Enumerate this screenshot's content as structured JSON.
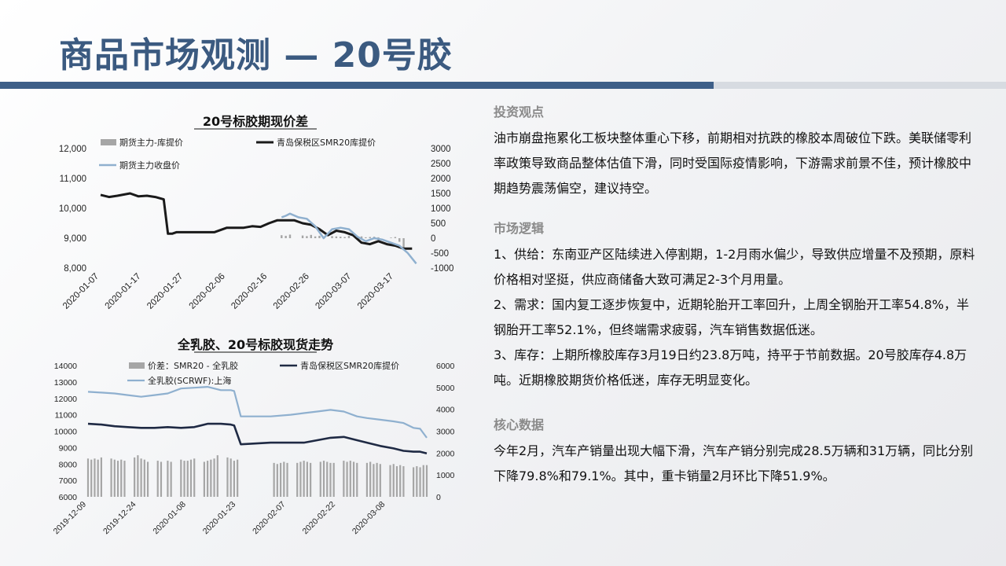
{
  "header": {
    "title": "商品市场观测 — 20号胶"
  },
  "colors": {
    "accent": "#3e5f88",
    "bar_gray": "#a6a6a6",
    "line_dark": "#1a1a1a",
    "line_navy": "#1f2a44",
    "line_light": "#8fb0cf"
  },
  "right_panel": {
    "sections": [
      {
        "heading": "投资观点",
        "paragraphs": [
          "油市崩盘拖累化工板块整体重心下移，前期相对抗跌的橡胶本周破位下跌。美联储零利率政策导致商品整体估值下滑，同时受国际疫情影响，下游需求前景不佳，预计橡胶中期趋势震荡偏空，建议持空。"
        ]
      },
      {
        "heading": "市场逻辑",
        "paragraphs": [
          "1、供给：东南亚产区陆续进入停割期，1-2月雨水偏少，导致供应增量不及预期，原料价格相对坚挺，供应商储备大致可满足2-3个月用量。",
          "2、需求：国内复工逐步恢复中，近期轮胎开工率回升，上周全钢胎开工率54.8%，半钢胎开工率52.1%，但终端需求疲弱，汽车销售数据低迷。",
          "3、库存：上期所橡胶库存3月19日约23.8万吨，持平于节前数据。20号胶库存4.8万吨。近期橡胶期货价格低迷，库存无明显变化。"
        ]
      },
      {
        "heading": "核心数据",
        "paragraphs": [
          "今年2月，汽车产销量出现大幅下滑，汽车产销分别完成28.5万辆和31万辆，同比分别下降79.8%和79.1%。其中，重卡销量2月环比下降51.9%。"
        ]
      }
    ]
  },
  "chart_data": [
    {
      "type": "line",
      "title": "20号标胶期现价差",
      "left_axis": {
        "ylim": [
          8000,
          12000
        ],
        "ticks": [
          "12,000",
          "11,000",
          "10,000",
          "9,000",
          "8,000"
        ],
        "tick_values": [
          12000,
          11000,
          10000,
          9000,
          8000
        ]
      },
      "right_axis": {
        "ylim": [
          -1000,
          3000
        ],
        "ticks": [
          "3000",
          "2500",
          "2000",
          "1500",
          "1000",
          "500",
          "0",
          "-500",
          "-1000"
        ],
        "tick_values": [
          3000,
          2500,
          2000,
          1500,
          1000,
          500,
          0,
          -500,
          -1000
        ]
      },
      "x_range": [
        "2020-01-07",
        "2020-03-23"
      ],
      "x_ticks": [
        "2020-01-07",
        "2020-01-17",
        "2020-01-27",
        "2020-02-06",
        "2020-02-16",
        "2020-02-26",
        "2020-03-07",
        "2020-03-17"
      ],
      "legend_position": "top",
      "series": [
        {
          "name": "期货主力-库提价",
          "type": "bar",
          "axis": "right",
          "x": [
            "2020-02-19",
            "2020-02-20",
            "2020-02-21",
            "2020-02-24",
            "2020-02-25",
            "2020-02-26",
            "2020-02-27",
            "2020-02-28",
            "2020-03-02",
            "2020-03-03",
            "2020-03-04",
            "2020-03-05",
            "2020-03-06",
            "2020-03-09",
            "2020-03-10",
            "2020-03-11",
            "2020-03-12",
            "2020-03-13",
            "2020-03-16",
            "2020-03-17",
            "2020-03-18",
            "2020-03-19"
          ],
          "values": [
            100,
            80,
            120,
            90,
            70,
            110,
            60,
            80,
            70,
            60,
            50,
            40,
            80,
            60,
            30,
            40,
            50,
            30,
            20,
            40,
            -120,
            -400
          ]
        },
        {
          "name": "青岛保税区SMR20库提价",
          "type": "line",
          "axis": "left",
          "x": [
            "2020-01-07",
            "2020-01-09",
            "2020-01-11",
            "2020-01-14",
            "2020-01-16",
            "2020-01-18",
            "2020-01-20",
            "2020-01-22",
            "2020-01-23",
            "2020-01-24",
            "2020-01-25",
            "2020-01-27",
            "2020-02-03",
            "2020-02-06",
            "2020-02-08",
            "2020-02-10",
            "2020-02-12",
            "2020-02-14",
            "2020-02-16",
            "2020-02-18",
            "2020-02-20",
            "2020-02-22",
            "2020-02-24",
            "2020-02-26",
            "2020-02-28",
            "2020-03-01",
            "2020-03-03",
            "2020-03-05",
            "2020-03-07",
            "2020-03-09",
            "2020-03-11",
            "2020-03-13",
            "2020-03-15",
            "2020-03-17",
            "2020-03-19",
            "2020-03-21"
          ],
          "values": [
            10450,
            10380,
            10420,
            10500,
            10400,
            10420,
            10380,
            10300,
            9150,
            9150,
            9200,
            9200,
            9200,
            9350,
            9350,
            9350,
            9400,
            9380,
            9500,
            9600,
            9600,
            9600,
            9500,
            9450,
            9300,
            9100,
            9250,
            9200,
            9100,
            8850,
            8800,
            8900,
            8800,
            8750,
            8650,
            8650
          ]
        },
        {
          "name": "期货主力收盘价",
          "type": "line",
          "axis": "left",
          "x": [
            "2020-02-19",
            "2020-02-20",
            "2020-02-21",
            "2020-02-23",
            "2020-02-25",
            "2020-02-27",
            "2020-02-29",
            "2020-03-02",
            "2020-03-04",
            "2020-03-06",
            "2020-03-08",
            "2020-03-10",
            "2020-03-12",
            "2020-03-14",
            "2020-03-16",
            "2020-03-18",
            "2020-03-20",
            "2020-03-22"
          ],
          "values": [
            9700,
            9750,
            9820,
            9700,
            9650,
            9400,
            9000,
            9300,
            9350,
            9300,
            9050,
            8900,
            9000,
            8950,
            8850,
            8750,
            8500,
            8150
          ]
        }
      ]
    },
    {
      "type": "line",
      "title": "全乳胶、20号标胶现货走势",
      "left_axis": {
        "ylim": [
          6000,
          14000
        ],
        "ticks": [
          "14000",
          "13000",
          "12000",
          "11000",
          "10000",
          "9000",
          "8000",
          "7000",
          "6000"
        ],
        "tick_values": [
          14000,
          13000,
          12000,
          11000,
          10000,
          9000,
          8000,
          7000,
          6000
        ]
      },
      "right_axis": {
        "ylim": [
          0,
          6000
        ],
        "ticks": [
          "6000",
          "5000",
          "4000",
          "3000",
          "2000",
          "1000",
          "0"
        ],
        "tick_values": [
          6000,
          5000,
          4000,
          3000,
          2000,
          1000,
          0
        ]
      },
      "x_range": [
        "2019-12-09",
        "2020-03-20"
      ],
      "x_ticks": [
        "2019-12-09",
        "2019-12-24",
        "2020-01-08",
        "2020-01-23",
        "2020-02-07",
        "2020-02-22",
        "2020-03-08"
      ],
      "legend_position": "top",
      "series": [
        {
          "name": "价差：SMR20 - 全乳胶",
          "type": "bar",
          "axis": "right",
          "x": [
            "2019-12-09",
            "2019-12-10",
            "2019-12-11",
            "2019-12-12",
            "2019-12-13",
            "2019-12-16",
            "2019-12-17",
            "2019-12-18",
            "2019-12-19",
            "2019-12-20",
            "2019-12-23",
            "2019-12-24",
            "2019-12-25",
            "2019-12-26",
            "2019-12-27",
            "2019-12-30",
            "2019-12-31",
            "2020-01-02",
            "2020-01-03",
            "2020-01-06",
            "2020-01-07",
            "2020-01-08",
            "2020-01-09",
            "2020-01-10",
            "2020-01-13",
            "2020-01-14",
            "2020-01-15",
            "2020-01-16",
            "2020-01-17",
            "2020-01-20",
            "2020-01-21",
            "2020-01-22",
            "2020-01-23",
            "2020-02-03",
            "2020-02-04",
            "2020-02-05",
            "2020-02-06",
            "2020-02-07",
            "2020-02-10",
            "2020-02-11",
            "2020-02-12",
            "2020-02-13",
            "2020-02-14",
            "2020-02-17",
            "2020-02-18",
            "2020-02-19",
            "2020-02-20",
            "2020-02-21",
            "2020-02-24",
            "2020-02-25",
            "2020-02-26",
            "2020-02-27",
            "2020-02-28",
            "2020-03-02",
            "2020-03-03",
            "2020-03-04",
            "2020-03-05",
            "2020-03-06",
            "2020-03-09",
            "2020-03-10",
            "2020-03-11",
            "2020-03-12",
            "2020-03-13",
            "2020-03-16",
            "2020-03-17",
            "2020-03-18",
            "2020-03-19",
            "2020-03-20"
          ],
          "values": [
            1750,
            1700,
            1750,
            1700,
            1800,
            1750,
            1700,
            1650,
            1700,
            1650,
            1800,
            1900,
            1750,
            1700,
            1600,
            1650,
            1600,
            1650,
            1600,
            1700,
            1650,
            1650,
            1700,
            1750,
            1600,
            1650,
            1700,
            1750,
            1900,
            1800,
            1750,
            1650,
            1700,
            1550,
            1500,
            1550,
            1600,
            1550,
            1550,
            1600,
            1650,
            1600,
            1550,
            1600,
            1650,
            1600,
            1550,
            1550,
            1650,
            1600,
            1650,
            1600,
            1550,
            1550,
            1600,
            1500,
            1550,
            1500,
            1450,
            1500,
            1400,
            1450,
            1400,
            1350,
            1400,
            1350,
            1450,
            1450
          ]
        },
        {
          "name": "青岛保税区SMR20库提价",
          "type": "line",
          "axis": "left",
          "x": [
            "2019-12-09",
            "2019-12-13",
            "2019-12-17",
            "2019-12-21",
            "2019-12-25",
            "2019-12-29",
            "2020-01-02",
            "2020-01-06",
            "2020-01-10",
            "2020-01-14",
            "2020-01-18",
            "2020-01-21",
            "2020-01-22",
            "2020-01-24",
            "2020-02-02",
            "2020-02-08",
            "2020-02-12",
            "2020-02-16",
            "2020-02-20",
            "2020-02-24",
            "2020-02-28",
            "2020-03-02",
            "2020-03-06",
            "2020-03-10",
            "2020-03-13",
            "2020-03-16",
            "2020-03-18",
            "2020-03-20"
          ],
          "values": [
            10450,
            10400,
            10300,
            10250,
            10200,
            10200,
            10250,
            10200,
            10250,
            10450,
            10450,
            10400,
            10350,
            9200,
            9300,
            9300,
            9300,
            9450,
            9600,
            9650,
            9450,
            9300,
            9100,
            8950,
            8800,
            8750,
            8750,
            8650
          ]
        },
        {
          "name": "全乳胶(SCRWF):上海",
          "type": "line",
          "axis": "left",
          "x": [
            "2019-12-09",
            "2019-12-13",
            "2019-12-17",
            "2019-12-21",
            "2019-12-25",
            "2019-12-29",
            "2020-01-02",
            "2020-01-06",
            "2020-01-10",
            "2020-01-14",
            "2020-01-18",
            "2020-01-21",
            "2020-01-22",
            "2020-01-24",
            "2020-02-02",
            "2020-02-08",
            "2020-02-12",
            "2020-02-16",
            "2020-02-20",
            "2020-02-24",
            "2020-02-28",
            "2020-03-02",
            "2020-03-06",
            "2020-03-10",
            "2020-03-13",
            "2020-03-16",
            "2020-03-18",
            "2020-03-20"
          ],
          "values": [
            12400,
            12350,
            12300,
            12200,
            12100,
            12200,
            12300,
            12600,
            12650,
            12700,
            12500,
            12500,
            12450,
            10900,
            10900,
            11000,
            11100,
            11200,
            11300,
            11200,
            10900,
            10800,
            10700,
            10600,
            10500,
            10200,
            10150,
            9600
          ]
        }
      ]
    }
  ]
}
